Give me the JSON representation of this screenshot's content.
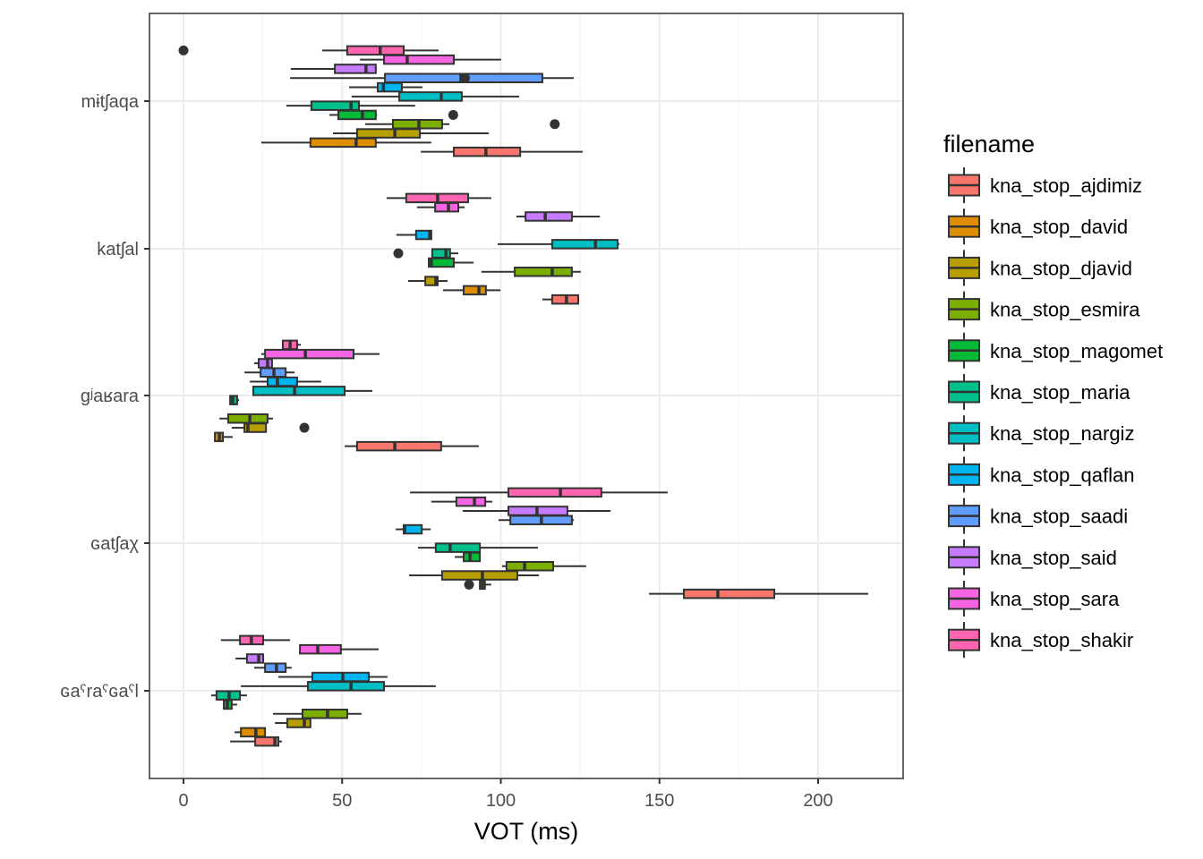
{
  "chart_data": {
    "type": "boxplot",
    "orientation": "horizontal",
    "title": "",
    "xlabel": "VOT (ms)",
    "ylabel": "",
    "xlim": [
      -11,
      227
    ],
    "x_ticks": [
      0,
      50,
      100,
      150,
      200
    ],
    "x_tick_labels": [
      "0",
      "50",
      "100",
      "150",
      "200"
    ],
    "grid": true,
    "categories": [
      "mɨtʃaqa",
      "katʃal",
      "gʲaʁara",
      "ɢatʃaχ",
      "ɢaˤraˤɢaˤl"
    ],
    "legend": {
      "title": "filename",
      "position": "right",
      "entries": [
        {
          "name": "kna_stop_ajdimiz",
          "color": "#F8766D"
        },
        {
          "name": "kna_stop_david",
          "color": "#DE8C00"
        },
        {
          "name": "kna_stop_djavid",
          "color": "#B79F00"
        },
        {
          "name": "kna_stop_esmira",
          "color": "#7CAE00"
        },
        {
          "name": "kna_stop_magomet",
          "color": "#00BA38"
        },
        {
          "name": "kna_stop_maria",
          "color": "#00C08B"
        },
        {
          "name": "kna_stop_nargiz",
          "color": "#00BFC4"
        },
        {
          "name": "kna_stop_qaflan",
          "color": "#00B4F0"
        },
        {
          "name": "kna_stop_saadi",
          "color": "#619CFF"
        },
        {
          "name": "kna_stop_said",
          "color": "#C77CFF"
        },
        {
          "name": "kna_stop_sara",
          "color": "#F564E3"
        },
        {
          "name": "kna_stop_shakir",
          "color": "#FF64B0"
        }
      ]
    },
    "groups": [
      {
        "category": "mɨtʃaqa",
        "boxes": [
          {
            "file": "kna_stop_ajdimiz",
            "min": 74.8,
            "q1": 85.2,
            "median": 95.3,
            "q3": 106.1,
            "max": 125.8,
            "outliers": []
          },
          {
            "file": "kna_stop_david",
            "min": 24.5,
            "q1": 40.0,
            "median": 54.4,
            "q3": 60.6,
            "max": 78.1,
            "outliers": []
          },
          {
            "file": "kna_stop_djavid",
            "min": 47.1,
            "q1": 54.7,
            "median": 66.6,
            "q3": 74.5,
            "max": 96.2,
            "outliers": []
          },
          {
            "file": "kna_stop_esmira",
            "min": 57.3,
            "q1": 66.0,
            "median": 74.2,
            "q3": 81.5,
            "max": 83.8,
            "outliers": [
              117
            ]
          },
          {
            "file": "kna_stop_magomet",
            "min": 46.0,
            "q1": 48.8,
            "median": 56.4,
            "q3": 60.6,
            "max": 61.0,
            "outliers": [
              85
            ]
          },
          {
            "file": "kna_stop_maria",
            "min": 32.4,
            "q1": 40.3,
            "median": 52.8,
            "q3": 55.3,
            "max": 73.0,
            "outliers": []
          },
          {
            "file": "kna_stop_nargiz",
            "min": 53.0,
            "q1": 68.0,
            "median": 81.2,
            "q3": 87.7,
            "max": 105.8,
            "outliers": []
          },
          {
            "file": "kna_stop_qaflan",
            "min": 52.2,
            "q1": 61.2,
            "median": 63.0,
            "q3": 68.8,
            "max": 75.3,
            "outliers": []
          },
          {
            "file": "kna_stop_saadi",
            "min": 33.6,
            "q1": 63.5,
            "median": 87.4,
            "q3": 113.1,
            "max": 123.0,
            "outliers": [
              88.7
            ]
          },
          {
            "file": "kna_stop_said",
            "min": 33.8,
            "q1": 47.7,
            "median": 57.5,
            "q3": 60.6,
            "max": 60.6,
            "outliers": []
          },
          {
            "file": "kna_stop_sara",
            "min": 55.6,
            "q1": 63.2,
            "median": 70.5,
            "q3": 85.2,
            "max": 100.1,
            "outliers": []
          },
          {
            "file": "kna_stop_shakir",
            "min": 43.7,
            "q1": 51.6,
            "median": 62.0,
            "q3": 69.4,
            "max": 80.4,
            "outliers": [
              0
            ]
          }
        ]
      },
      {
        "category": "katʃal",
        "boxes": [
          {
            "file": "kna_stop_ajdimiz",
            "min": 113.1,
            "q1": 116.2,
            "median": 120.7,
            "q3": 124.4,
            "max": 124.7,
            "outliers": []
          },
          {
            "file": "kna_stop_david",
            "min": 81.8,
            "q1": 88.3,
            "median": 93.1,
            "q3": 95.3,
            "max": 99.9,
            "outliers": []
          },
          {
            "file": "kna_stop_djavid",
            "min": 70.8,
            "q1": 76.2,
            "median": 79.5,
            "q3": 80.1,
            "max": 83.2,
            "outliers": []
          },
          {
            "file": "kna_stop_esmira",
            "min": 93.9,
            "q1": 104.4,
            "median": 116.2,
            "q3": 122.4,
            "max": 125.2,
            "outliers": []
          },
          {
            "file": "kna_stop_magomet",
            "min": 77.0,
            "q1": 77.3,
            "median": 78.1,
            "q3": 85.2,
            "max": 91.4,
            "outliers": []
          },
          {
            "file": "kna_stop_maria",
            "min": 78.4,
            "q1": 78.4,
            "median": 82.7,
            "q3": 84.0,
            "max": 86.6,
            "outliers": [
              67.7
            ]
          },
          {
            "file": "kna_stop_nargiz",
            "min": 99.0,
            "q1": 116.2,
            "median": 129.8,
            "q3": 136.8,
            "max": 137.4,
            "outliers": []
          },
          {
            "file": "kna_stop_qaflan",
            "min": 67.1,
            "q1": 73.3,
            "median": 77.6,
            "q3": 78.1,
            "max": 78.1,
            "outliers": []
          },
          {
            "file": "kna_stop_said",
            "min": 104.9,
            "q1": 107.8,
            "median": 114.0,
            "q3": 122.4,
            "max": 131.2,
            "outliers": []
          },
          {
            "file": "kna_stop_sara",
            "min": 73.6,
            "q1": 79.3,
            "median": 83.5,
            "q3": 86.6,
            "max": 88.6,
            "outliers": []
          },
          {
            "file": "kna_stop_shakir",
            "min": 64.0,
            "q1": 70.2,
            "median": 80.1,
            "q3": 89.7,
            "max": 97.0,
            "outliers": []
          }
        ]
      },
      {
        "category": "gʲaʁara",
        "boxes": [
          {
            "file": "kna_stop_ajdimiz",
            "min": 50.8,
            "q1": 54.7,
            "median": 66.6,
            "q3": 81.2,
            "max": 93.1,
            "outliers": []
          },
          {
            "file": "kna_stop_david",
            "min": 9.9,
            "q1": 9.9,
            "median": 11.3,
            "q3": 12.4,
            "max": 15.5,
            "outliers": []
          },
          {
            "file": "kna_stop_djavid",
            "min": 15.2,
            "q1": 19.2,
            "median": 20.3,
            "q3": 26.0,
            "max": 26.0,
            "outliers": [
              38.1
            ]
          },
          {
            "file": "kna_stop_esmira",
            "min": 11.3,
            "q1": 14.1,
            "median": 20.9,
            "q3": 26.5,
            "max": 28.2,
            "outliers": []
          },
          {
            "file": "kna_stop_maria",
            "min": 14.7,
            "q1": 14.7,
            "median": 15.5,
            "q3": 16.9,
            "max": 17.5,
            "outliers": []
          },
          {
            "file": "kna_stop_nargiz",
            "min": 22.0,
            "q1": 22.0,
            "median": 35.0,
            "q3": 50.8,
            "max": 59.5,
            "outliers": []
          },
          {
            "file": "kna_stop_qaflan",
            "min": 20.9,
            "q1": 26.5,
            "median": 29.6,
            "q3": 35.8,
            "max": 43.4,
            "outliers": []
          },
          {
            "file": "kna_stop_saadi",
            "min": 19.2,
            "q1": 24.3,
            "median": 28.5,
            "q3": 32.2,
            "max": 35.0,
            "outliers": []
          },
          {
            "file": "kna_stop_said",
            "min": 22.3,
            "q1": 23.7,
            "median": 26.5,
            "q3": 27.9,
            "max": 27.9,
            "outliers": []
          },
          {
            "file": "kna_stop_sara",
            "min": 24.5,
            "q1": 25.7,
            "median": 38.4,
            "q3": 53.6,
            "max": 61.8,
            "outliers": []
          },
          {
            "file": "kna_stop_shakir",
            "min": 31.3,
            "q1": 31.3,
            "median": 33.6,
            "q3": 35.8,
            "max": 37.0,
            "outliers": []
          }
        ]
      },
      {
        "category": "ɢatʃaχ",
        "boxes": [
          {
            "file": "kna_stop_ajdimiz",
            "min": 146.7,
            "q1": 157.7,
            "median": 168.4,
            "q3": 186.2,
            "max": 215.8,
            "outliers": []
          },
          {
            "file": "kna_stop_david",
            "min": 93.4,
            "q1": 93.4,
            "median": 94.2,
            "q3": 95.0,
            "max": 97.0,
            "outliers": [
              90.0
            ]
          },
          {
            "file": "kna_stop_djavid",
            "min": 71.1,
            "q1": 81.5,
            "median": 94.2,
            "q3": 105.2,
            "max": 112.0,
            "outliers": []
          },
          {
            "file": "kna_stop_esmira",
            "min": 100.4,
            "q1": 101.8,
            "median": 107.5,
            "q3": 116.5,
            "max": 126.9,
            "outliers": []
          },
          {
            "file": "kna_stop_magomet",
            "min": 85.5,
            "q1": 88.3,
            "median": 90.3,
            "q3": 93.4,
            "max": 93.4,
            "outliers": []
          },
          {
            "file": "kna_stop_maria",
            "min": 73.9,
            "q1": 79.5,
            "median": 84.0,
            "q3": 93.4,
            "max": 111.7,
            "outliers": []
          },
          {
            "file": "kna_stop_qaflan",
            "min": 66.9,
            "q1": 69.4,
            "median": 69.7,
            "q3": 75.1,
            "max": 77.9,
            "outliers": []
          },
          {
            "file": "kna_stop_saadi",
            "min": 99.3,
            "q1": 103.0,
            "median": 112.8,
            "q3": 122.4,
            "max": 123.0,
            "outliers": []
          },
          {
            "file": "kna_stop_said",
            "min": 88.0,
            "q1": 102.4,
            "median": 111.4,
            "q3": 121.0,
            "max": 134.6,
            "outliers": []
          },
          {
            "file": "kna_stop_sara",
            "min": 78.1,
            "q1": 86.0,
            "median": 91.7,
            "q3": 95.1,
            "max": 97.3,
            "outliers": []
          },
          {
            "file": "kna_stop_shakir",
            "min": 71.4,
            "q1": 102.4,
            "median": 118.8,
            "q3": 131.7,
            "max": 152.6,
            "outliers": []
          }
        ]
      },
      {
        "category": "ɢaˤraˤɢaˤl",
        "boxes": [
          {
            "file": "kna_stop_ajdimiz",
            "min": 14.7,
            "q1": 22.6,
            "median": 28.8,
            "q3": 29.9,
            "max": 31.0,
            "outliers": []
          },
          {
            "file": "kna_stop_david",
            "min": 16.1,
            "q1": 18.1,
            "median": 22.8,
            "q3": 25.7,
            "max": 25.7,
            "outliers": []
          },
          {
            "file": "kna_stop_djavid",
            "min": 28.8,
            "q1": 32.7,
            "median": 38.1,
            "q3": 40.0,
            "max": 40.0,
            "outliers": []
          },
          {
            "file": "kna_stop_esmira",
            "min": 28.2,
            "q1": 37.5,
            "median": 45.4,
            "q3": 51.6,
            "max": 56.1,
            "outliers": []
          },
          {
            "file": "kna_stop_magomet",
            "min": 12.7,
            "q1": 12.7,
            "median": 13.8,
            "q3": 15.2,
            "max": 16.9,
            "outliers": []
          },
          {
            "file": "kna_stop_maria",
            "min": 8.7,
            "q1": 10.4,
            "median": 14.4,
            "q3": 17.8,
            "max": 20.0,
            "outliers": []
          },
          {
            "file": "kna_stop_nargiz",
            "min": 18.1,
            "q1": 39.2,
            "median": 52.8,
            "q3": 63.2,
            "max": 79.5,
            "outliers": []
          },
          {
            "file": "kna_stop_qaflan",
            "min": 29.9,
            "q1": 40.6,
            "median": 50.2,
            "q3": 58.4,
            "max": 64.3,
            "outliers": []
          },
          {
            "file": "kna_stop_saadi",
            "min": 22.3,
            "q1": 25.7,
            "median": 29.3,
            "q3": 32.2,
            "max": 34.1,
            "outliers": []
          },
          {
            "file": "kna_stop_said",
            "min": 16.4,
            "q1": 20.0,
            "median": 23.7,
            "q3": 25.1,
            "max": 25.1,
            "outliers": []
          },
          {
            "file": "kna_stop_sara",
            "min": 36.7,
            "q1": 36.7,
            "median": 42.3,
            "q3": 49.6,
            "max": 61.5,
            "outliers": []
          },
          {
            "file": "kna_stop_shakir",
            "min": 11.8,
            "q1": 17.8,
            "median": 21.4,
            "q3": 25.1,
            "max": 33.6,
            "outliers": []
          }
        ]
      }
    ]
  }
}
